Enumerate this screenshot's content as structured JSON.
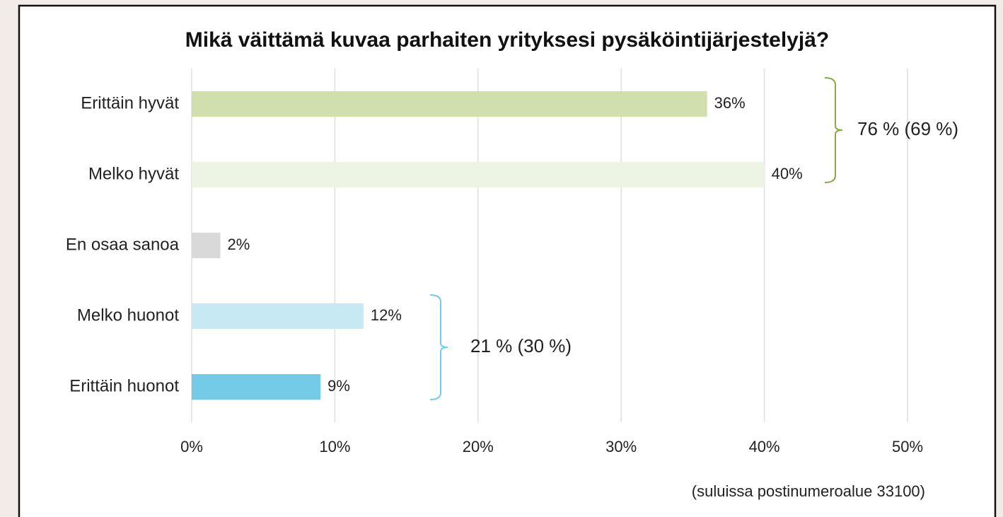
{
  "chart_data": {
    "type": "bar",
    "orientation": "horizontal",
    "title": "Mikä väittämä kuvaa parhaiten yrityksesi pysäköintijärjestelyjä?",
    "categories": [
      "Erittäin hyvät",
      "Melko hyvät",
      "En osaa sanoa",
      "Melko huonot",
      "Erittäin huonot"
    ],
    "values": [
      36,
      40,
      2,
      12,
      9
    ],
    "value_labels": [
      "36%",
      "40%",
      "2%",
      "12%",
      "9%"
    ],
    "colors": [
      "#d0dfab",
      "#eef4e3",
      "#d9d9d9",
      "#c6e9f4",
      "#74cbe8"
    ],
    "xlim": [
      0,
      50
    ],
    "xticks": [
      {
        "value": 0,
        "label": "0%"
      },
      {
        "value": 10,
        "label": "10%"
      },
      {
        "value": 20,
        "label": "20%"
      },
      {
        "value": 30,
        "label": "30%"
      },
      {
        "value": 40,
        "label": "40%"
      },
      {
        "value": 50,
        "label": "50%"
      }
    ],
    "grid": true,
    "annotations": [
      {
        "text": "76 % (69 %)",
        "color": "#8aab4a"
      },
      {
        "text": "21 % (30 %)",
        "color": "#74cbe8"
      }
    ],
    "footnote": "(suluissa postinumeroalue 33100)"
  }
}
